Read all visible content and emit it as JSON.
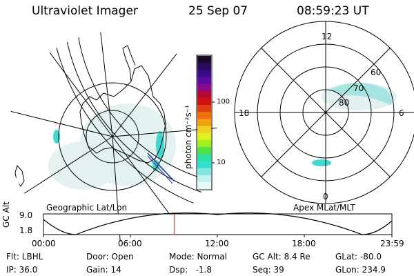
{
  "header": {
    "instrument": "Ultraviolet Imager",
    "date": "25 Sep 07",
    "time": "08:59:23 UT"
  },
  "colorbar": {
    "unit_label": "photon cm⁻²s⁻¹",
    "ticks": [
      "100",
      "10"
    ],
    "colors": [
      "#1a0a2a",
      "#2a0a5a",
      "#3a0a8a",
      "#5a0aa0",
      "#8a0a8a",
      "#b00a3a",
      "#d01010",
      "#e04010",
      "#f07010",
      "#f0a010",
      "#f0d020",
      "#e0f020",
      "#a0f020",
      "#50e040",
      "#30e0a0",
      "#30e0d0",
      "#80e8e0",
      "#c0f0f0",
      "#e8f8f8"
    ]
  },
  "left_map": {
    "label": "Geographic Lat/Lon"
  },
  "right_map": {
    "label": "Apex MLat/MLT",
    "mlt_labels": {
      "top": "12",
      "left": "18",
      "right": "6",
      "bottom": "0"
    },
    "lat_labels": [
      "60",
      "70",
      "80"
    ]
  },
  "timeline": {
    "axis_title": "GC Alt",
    "y_ticks": [
      "9.0",
      "1.8"
    ],
    "x_ticks": [
      "00:00",
      "06:00",
      "12:00",
      "18:00",
      "23:59"
    ],
    "marker_color": "#d02020",
    "current_fraction": 0.375
  },
  "info": {
    "filter": "Flt: LBHL",
    "ip": "IP: 36.0",
    "door": "Door: Open",
    "gain": "Gain: 14",
    "mode": "Mode: Normal",
    "dsp": "Dsp:   -1.8",
    "gc_alt": "GC Alt: 8.4 Re",
    "seq": "Seq: 39",
    "glat": "GLat: -80.0",
    "glon": "GLon: 234.9"
  }
}
